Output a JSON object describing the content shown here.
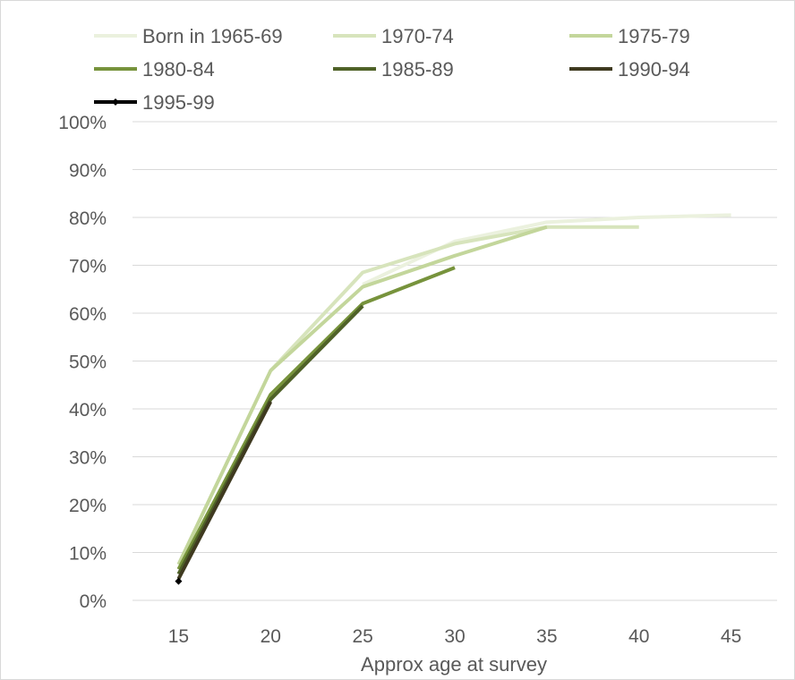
{
  "chart_data": {
    "type": "line",
    "title": "",
    "xlabel": "Approx age at survey",
    "ylabel": "",
    "x": [
      15,
      20,
      25,
      30,
      35,
      40,
      45
    ],
    "x_tick_labels": [
      "15",
      "20",
      "25",
      "30",
      "35",
      "40",
      "45"
    ],
    "ylim": [
      0,
      1
    ],
    "y_tick_labels": [
      "0%",
      "10%",
      "20%",
      "30%",
      "40%",
      "50%",
      "60%",
      "70%",
      "80%",
      "90%",
      "100%"
    ],
    "grid": "horizontal",
    "legend_position": "top",
    "series": [
      {
        "name": "Born in 1965-69",
        "color": "#ebf1de",
        "values": [
          null,
          null,
          0.66,
          0.75,
          0.79,
          0.8,
          0.805
        ]
      },
      {
        "name": "1970-74",
        "color": "#d7e4bc",
        "values": [
          null,
          0.48,
          0.685,
          0.745,
          0.78,
          0.78,
          null
        ]
      },
      {
        "name": "1975-79",
        "color": "#c3d69b",
        "values": [
          0.075,
          0.48,
          0.655,
          0.72,
          0.78,
          null,
          null
        ]
      },
      {
        "name": "1980-84",
        "color": "#77933c",
        "values": [
          0.065,
          0.43,
          0.62,
          0.695,
          null,
          null,
          null
        ]
      },
      {
        "name": "1985-89",
        "color": "#4f6228",
        "values": [
          0.055,
          0.42,
          0.615,
          null,
          null,
          null,
          null
        ]
      },
      {
        "name": "1990-94",
        "color": "#3f3a20",
        "values": [
          0.045,
          0.415,
          null,
          null,
          null,
          null,
          null
        ]
      },
      {
        "name": "1995-99",
        "color": "#000000",
        "marker": "diamond",
        "values": [
          0.04,
          null,
          null,
          null,
          null,
          null,
          null
        ]
      }
    ]
  }
}
